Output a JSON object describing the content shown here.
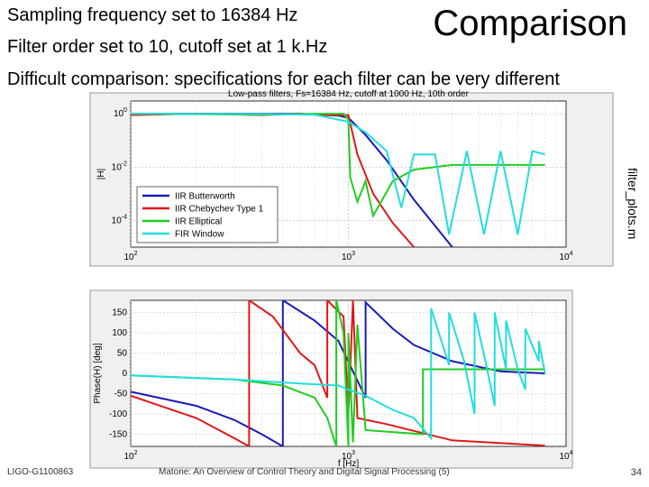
{
  "slide": {
    "title": "Comparison",
    "line1": "Sampling frequency set to 16384 Hz",
    "line2": "Filter order set to 10, cutoff set at 1 k.Hz",
    "line3": "Difficult comparison: specifications for each filter can be very different",
    "side_label": "filter_plots.m",
    "footer_left": "LIGO-G1100863",
    "footer_center": "Matone: An Overview of Control Theory and Digital Signal Processing (5)",
    "page_number": "34"
  },
  "colors": {
    "iir_butterworth": "#1a1ab8",
    "iir_chebyshev": "#e01818",
    "iir_elliptical": "#22cc22",
    "fir_window": "#22dddd"
  },
  "chart_data": [
    {
      "type": "line",
      "title": "Low-pass filters, Fs=16384 Hz, cutoff at 1000 Hz, 10th order",
      "xlabel": "",
      "ylabel": "|H|",
      "xscale": "log",
      "yscale": "log",
      "xlim": [
        100,
        10000
      ],
      "ylim": [
        1e-05,
        3
      ],
      "xticks": [
        100,
        1000,
        10000
      ],
      "xtick_labels": [
        "10^2",
        "10^3",
        "10^4"
      ],
      "yticks": [
        1,
        0.01,
        0.0001
      ],
      "ytick_labels": [
        "10^0",
        "10^-2",
        "10^-4"
      ],
      "grid": true,
      "legend": "left",
      "series": [
        {
          "name": "IIR Butterworth",
          "x": [
            100,
            300,
            600,
            900,
            1000,
            1200,
            1500,
            2000,
            3000
          ],
          "y": [
            1,
            1,
            1,
            0.85,
            0.7,
            0.16,
            0.018,
            0.0006,
            1e-05
          ]
        },
        {
          "name": "IIR Chebychev Type 1",
          "x": [
            100,
            200,
            400,
            600,
            800,
            1000,
            1100,
            1300,
            1600,
            2000
          ],
          "y": [
            0.89,
            1,
            0.89,
            1,
            0.89,
            0.89,
            0.03,
            0.001,
            8e-05,
            1e-05
          ]
        },
        {
          "name": "IIR Elliptical",
          "x": [
            100,
            400,
            700,
            950,
            1000,
            1020,
            1100,
            1200,
            1300,
            1600,
            2000,
            3000,
            5000,
            8000
          ],
          "y": [
            1,
            0.92,
            1,
            1,
            0.6,
            0.004,
            0.0005,
            0.003,
            0.00015,
            0.003,
            0.008,
            0.012,
            0.012,
            0.012
          ]
        },
        {
          "name": "FIR Window",
          "x": [
            100,
            400,
            700,
            1000,
            1200,
            1500,
            1750,
            2000,
            2500,
            2900,
            3500,
            4200,
            5000,
            6000,
            7000,
            8000
          ],
          "y": [
            1,
            0.98,
            0.92,
            0.5,
            0.2,
            0.04,
            0.0003,
            0.03,
            0.03,
            3e-05,
            0.04,
            3e-05,
            0.04,
            3e-05,
            0.04,
            0.03
          ]
        }
      ]
    },
    {
      "type": "line",
      "title": "",
      "xlabel": "f [Hz]",
      "ylabel": "Phase(H) [deg]",
      "xscale": "log",
      "xlim": [
        100,
        10000
      ],
      "ylim": [
        -180,
        180
      ],
      "xticks": [
        100,
        1000,
        10000
      ],
      "xtick_labels": [
        "10^2",
        "10^3",
        "10^4"
      ],
      "yticks": [
        150,
        100,
        50,
        0,
        -50,
        -100,
        -150
      ],
      "ytick_labels": [
        "150",
        "100",
        "50",
        "0",
        "-50",
        "-100",
        "-150"
      ],
      "grid": true,
      "series": [
        {
          "name": "IIR Butterworth",
          "x": [
            100,
            200,
            300,
            400,
            500,
            500.1,
            700,
            900,
            1200,
            1200.1,
            1600,
            2000,
            3000,
            5000,
            8000
          ],
          "y": [
            -45,
            -80,
            -115,
            -150,
            -180,
            180,
            130,
            80,
            -60,
            175,
            110,
            70,
            30,
            5,
            0
          ]
        },
        {
          "name": "IIR Chebychev Type 1",
          "x": [
            100,
            200,
            300,
            350,
            350.1,
            450,
            600,
            700,
            800,
            800.1,
            950,
            1000,
            1050,
            1100,
            1500,
            3000,
            8000
          ],
          "y": [
            -55,
            -110,
            -160,
            -180,
            180,
            140,
            50,
            20,
            -60,
            180,
            140,
            -100,
            180,
            -110,
            -125,
            -165,
            -178
          ]
        },
        {
          "name": "IIR Elliptical",
          "x": [
            100,
            300,
            500,
            700,
            800,
            880,
            880.1,
            950,
            1000,
            1000.1,
            1050,
            1100,
            1200,
            2200,
            2200.1,
            8000
          ],
          "y": [
            -5,
            -15,
            -30,
            -60,
            -110,
            -180,
            180,
            100,
            -180,
            100,
            -170,
            120,
            -140,
            -150,
            10,
            10
          ]
        },
        {
          "name": "FIR Window",
          "x": [
            100,
            300,
            600,
            900,
            1000,
            1200,
            1600,
            2000,
            2400,
            2400.1,
            2900,
            2900.1,
            3400,
            3800,
            3800.1,
            4300,
            4700,
            4700.1,
            5300,
            5300.1,
            6000,
            6500,
            6500.1,
            7500,
            7500.1,
            8000
          ],
          "y": [
            -5,
            -15,
            -25,
            -30,
            -40,
            -55,
            -90,
            -110,
            -160,
            160,
            20,
            150,
            30,
            -100,
            150,
            20,
            -80,
            150,
            10,
            130,
            10,
            -40,
            110,
            30,
            80,
            0
          ]
        }
      ]
    }
  ]
}
